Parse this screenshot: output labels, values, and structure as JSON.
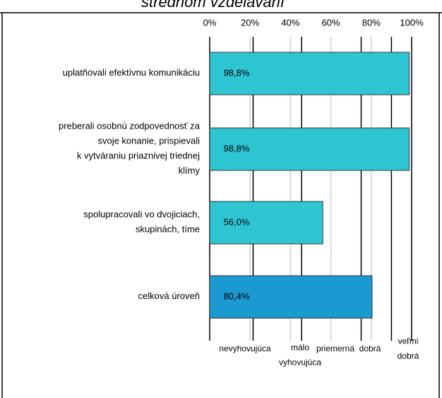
{
  "chart_data": {
    "type": "barh",
    "title": "strednom vzdelávaní",
    "categories": [
      "uplatňovali efektívnu komunikáciu",
      "preberali osobnú zodpovednosť za\nsvoje konanie, prispievali\nk vytváraniu priaznivej triednej\nklímy",
      "spolupracovali vo dvojiciach,\nskupinách, tíme",
      "celková úroveň"
    ],
    "values": [
      98.8,
      98.8,
      56.0,
      80.4
    ],
    "value_labels": [
      "98,8%",
      "98,8%",
      "56,0%",
      "80,4%"
    ],
    "colors": [
      "#2ec5d3",
      "#2ec5d3",
      "#2ec5d3",
      "#1a9ad0"
    ],
    "xlim": [
      0,
      100
    ],
    "xticks": [
      {
        "value": 0,
        "label": "0%"
      },
      {
        "value": 20,
        "label": "20%"
      },
      {
        "value": 40,
        "label": "40%"
      },
      {
        "value": 60,
        "label": "60%"
      },
      {
        "value": 80,
        "label": "80%"
      },
      {
        "value": 100,
        "label": "100%"
      }
    ],
    "grid": true,
    "rating_boundaries": [
      0,
      21.5,
      45.5,
      75,
      90,
      100
    ],
    "ratings": [
      "nevyhovujúca",
      "málo\nvyhovujúca",
      "priemerná",
      "dobrá",
      "veľmi\ndobrá"
    ]
  }
}
